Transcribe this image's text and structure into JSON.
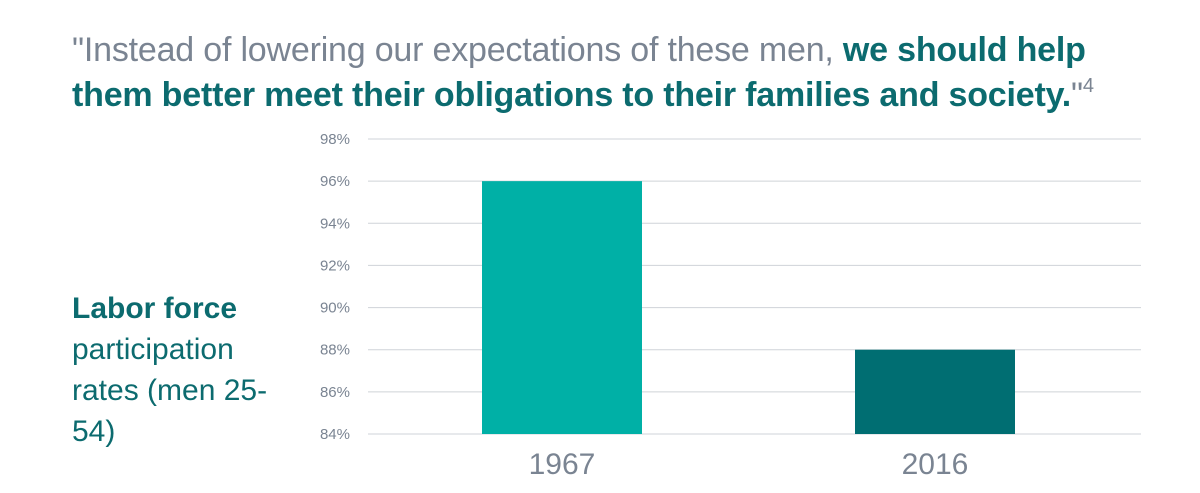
{
  "quote": {
    "open_mark": "\"",
    "plain": "Instead of lowering our expectations of these men, ",
    "emphasis": "we should help them better meet their obligations to their families and society.",
    "close_mark": "\"",
    "footnote": "4"
  },
  "y_axis_title": {
    "bold": "Labor force",
    "rest": "participation rates (men 25-54)"
  },
  "colors": {
    "accent_light": "#00b0a6",
    "accent_dark": "#006e72",
    "text_teal": "#0c6b6f",
    "text_gray": "#7a8492",
    "grid": "#cfd3d8"
  },
  "chart_data": {
    "type": "bar",
    "categories": [
      "1967",
      "2016"
    ],
    "values": [
      96,
      88
    ],
    "bar_colors": [
      "#00b0a6",
      "#006e72"
    ],
    "ylim": [
      84,
      98
    ],
    "yticks": [
      84,
      86,
      88,
      90,
      92,
      94,
      96,
      98
    ],
    "ytick_labels": [
      "84%",
      "86%",
      "88%",
      "90%",
      "92%",
      "94%",
      "96%",
      "98%"
    ],
    "grid": true,
    "ylabel": "Labor force participation rates (men 25-54)"
  }
}
